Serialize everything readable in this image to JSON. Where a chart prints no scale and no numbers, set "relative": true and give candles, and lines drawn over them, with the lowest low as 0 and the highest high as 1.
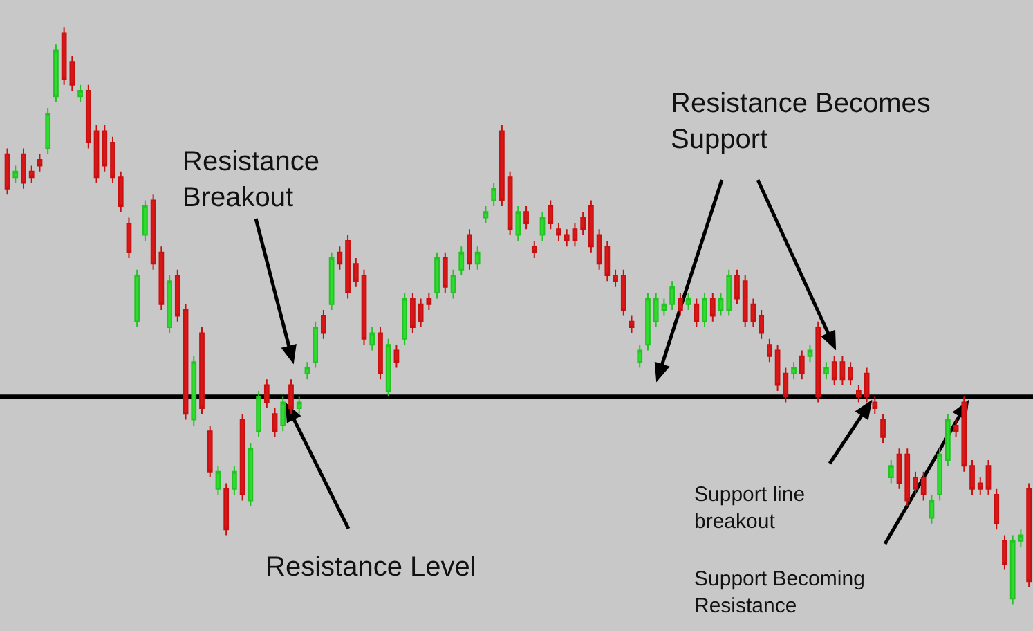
{
  "chart_data": {
    "type": "candlestick",
    "relative": true,
    "grid": false,
    "legend": false,
    "categories": [
      null,
      null,
      null,
      null,
      null,
      null,
      null,
      null,
      null,
      null,
      null,
      null,
      null,
      null,
      null,
      null,
      null,
      null,
      null,
      null,
      null,
      null,
      null,
      null,
      null,
      null,
      null,
      null,
      null,
      null,
      null,
      null,
      null,
      null,
      null,
      null,
      null,
      null,
      null,
      null,
      null,
      null,
      null,
      null,
      null,
      null,
      null,
      null,
      null,
      null,
      null,
      null,
      null,
      null,
      null,
      null,
      null,
      null,
      null,
      null,
      null,
      null,
      null,
      null,
      null,
      null,
      null,
      null,
      null,
      null,
      null,
      null,
      null,
      null,
      null,
      null,
      null,
      null,
      null,
      null,
      null,
      null,
      null,
      null,
      null,
      null,
      null,
      null,
      null,
      null,
      null,
      null,
      null,
      null,
      null,
      null,
      null,
      null,
      null,
      null,
      null,
      null,
      null,
      null,
      null,
      null,
      null,
      null,
      null,
      null,
      null,
      null,
      null,
      null,
      null,
      null,
      null,
      null,
      null,
      null,
      null,
      null,
      null,
      null,
      null,
      null,
      null
    ],
    "ohlc": [
      [
        0.78,
        0.79,
        0.71,
        0.72
      ],
      [
        0.74,
        0.76,
        0.73,
        0.75
      ],
      [
        0.78,
        0.79,
        0.72,
        0.73
      ],
      [
        0.75,
        0.76,
        0.73,
        0.74
      ],
      [
        0.77,
        0.78,
        0.75,
        0.76
      ],
      [
        0.79,
        0.86,
        0.78,
        0.85
      ],
      [
        0.88,
        0.97,
        0.87,
        0.96
      ],
      [
        0.99,
        1.0,
        0.9,
        0.91
      ],
      [
        0.94,
        0.95,
        0.89,
        0.9
      ],
      [
        0.88,
        0.9,
        0.87,
        0.89
      ],
      [
        0.89,
        0.9,
        0.79,
        0.8
      ],
      [
        0.82,
        0.83,
        0.73,
        0.74
      ],
      [
        0.82,
        0.83,
        0.75,
        0.76
      ],
      [
        0.8,
        0.81,
        0.73,
        0.74
      ],
      [
        0.74,
        0.75,
        0.68,
        0.69
      ],
      [
        0.66,
        0.67,
        0.6,
        0.61
      ],
      [
        0.49,
        0.58,
        0.48,
        0.57
      ],
      [
        0.64,
        0.7,
        0.63,
        0.69
      ],
      [
        0.7,
        0.71,
        0.58,
        0.59
      ],
      [
        0.61,
        0.62,
        0.51,
        0.52
      ],
      [
        0.48,
        0.57,
        0.47,
        0.56
      ],
      [
        0.57,
        0.58,
        0.49,
        0.5
      ],
      [
        0.51,
        0.52,
        0.32,
        0.33
      ],
      [
        0.32,
        0.43,
        0.31,
        0.42
      ],
      [
        0.47,
        0.48,
        0.33,
        0.34
      ],
      [
        0.3,
        0.31,
        0.22,
        0.23
      ],
      [
        0.2,
        0.24,
        0.19,
        0.23
      ],
      [
        0.2,
        0.21,
        0.12,
        0.13
      ],
      [
        0.2,
        0.24,
        0.19,
        0.23
      ],
      [
        0.32,
        0.33,
        0.18,
        0.19
      ],
      [
        0.18,
        0.28,
        0.17,
        0.27
      ],
      [
        0.3,
        0.37,
        0.29,
        0.36
      ],
      [
        0.38,
        0.39,
        0.34,
        0.35
      ],
      [
        0.33,
        0.34,
        0.29,
        0.3
      ],
      [
        0.31,
        0.36,
        0.3,
        0.35
      ],
      [
        0.38,
        0.39,
        0.33,
        0.34
      ],
      [
        0.34,
        0.36,
        0.33,
        0.35
      ],
      [
        0.4,
        0.42,
        0.39,
        0.41
      ],
      [
        0.42,
        0.49,
        0.41,
        0.48
      ],
      [
        0.5,
        0.51,
        0.46,
        0.47
      ],
      [
        0.52,
        0.61,
        0.51,
        0.6
      ],
      [
        0.61,
        0.62,
        0.58,
        0.59
      ],
      [
        0.63,
        0.64,
        0.53,
        0.54
      ],
      [
        0.59,
        0.6,
        0.55,
        0.56
      ],
      [
        0.57,
        0.58,
        0.45,
        0.46
      ],
      [
        0.45,
        0.48,
        0.44,
        0.47
      ],
      [
        0.47,
        0.48,
        0.39,
        0.4
      ],
      [
        0.37,
        0.46,
        0.36,
        0.45
      ],
      [
        0.44,
        0.45,
        0.41,
        0.42
      ],
      [
        0.46,
        0.54,
        0.45,
        0.53
      ],
      [
        0.53,
        0.54,
        0.47,
        0.48
      ],
      [
        0.52,
        0.53,
        0.48,
        0.49
      ],
      [
        0.53,
        0.54,
        0.51,
        0.52
      ],
      [
        0.54,
        0.61,
        0.53,
        0.6
      ],
      [
        0.6,
        0.61,
        0.54,
        0.55
      ],
      [
        0.54,
        0.58,
        0.53,
        0.57
      ],
      [
        0.58,
        0.62,
        0.57,
        0.61
      ],
      [
        0.64,
        0.65,
        0.58,
        0.59
      ],
      [
        0.59,
        0.62,
        0.58,
        0.61
      ],
      [
        0.67,
        0.69,
        0.66,
        0.68
      ],
      [
        0.7,
        0.73,
        0.69,
        0.72
      ],
      [
        0.82,
        0.83,
        0.69,
        0.7
      ],
      [
        0.74,
        0.75,
        0.64,
        0.65
      ],
      [
        0.64,
        0.69,
        0.63,
        0.68
      ],
      [
        0.68,
        0.69,
        0.65,
        0.66
      ],
      [
        0.62,
        0.63,
        0.6,
        0.61
      ],
      [
        0.64,
        0.68,
        0.63,
        0.67
      ],
      [
        0.69,
        0.7,
        0.65,
        0.66
      ],
      [
        0.65,
        0.66,
        0.63,
        0.64
      ],
      [
        0.64,
        0.65,
        0.62,
        0.63
      ],
      [
        0.65,
        0.66,
        0.62,
        0.63
      ],
      [
        0.67,
        0.68,
        0.64,
        0.65
      ],
      [
        0.69,
        0.7,
        0.61,
        0.62
      ],
      [
        0.64,
        0.65,
        0.58,
        0.59
      ],
      [
        0.62,
        0.63,
        0.56,
        0.57
      ],
      [
        0.57,
        0.58,
        0.55,
        0.56
      ],
      [
        0.57,
        0.58,
        0.5,
        0.51
      ],
      [
        0.49,
        0.5,
        0.47,
        0.48
      ],
      [
        0.42,
        0.45,
        0.41,
        0.44
      ],
      [
        0.45,
        0.54,
        0.44,
        0.53
      ],
      [
        0.49,
        0.54,
        0.48,
        0.53
      ],
      [
        0.51,
        0.53,
        0.5,
        0.52
      ],
      [
        0.52,
        0.56,
        0.51,
        0.55
      ],
      [
        0.53,
        0.54,
        0.5,
        0.51
      ],
      [
        0.52,
        0.54,
        0.51,
        0.53
      ],
      [
        0.52,
        0.53,
        0.48,
        0.49
      ],
      [
        0.49,
        0.54,
        0.48,
        0.53
      ],
      [
        0.53,
        0.54,
        0.49,
        0.5
      ],
      [
        0.51,
        0.54,
        0.5,
        0.53
      ],
      [
        0.51,
        0.58,
        0.5,
        0.57
      ],
      [
        0.57,
        0.58,
        0.52,
        0.53
      ],
      [
        0.56,
        0.57,
        0.48,
        0.49
      ],
      [
        0.52,
        0.53,
        0.48,
        0.49
      ],
      [
        0.5,
        0.51,
        0.46,
        0.47
      ],
      [
        0.45,
        0.46,
        0.42,
        0.43
      ],
      [
        0.44,
        0.45,
        0.37,
        0.38
      ],
      [
        0.4,
        0.41,
        0.35,
        0.36
      ],
      [
        0.4,
        0.42,
        0.39,
        0.41
      ],
      [
        0.43,
        0.44,
        0.39,
        0.4
      ],
      [
        0.43,
        0.45,
        0.42,
        0.44
      ],
      [
        0.48,
        0.49,
        0.35,
        0.36
      ],
      [
        0.4,
        0.42,
        0.39,
        0.41
      ],
      [
        0.42,
        0.43,
        0.38,
        0.39
      ],
      [
        0.42,
        0.43,
        0.38,
        0.39
      ],
      [
        0.41,
        0.42,
        0.38,
        0.39
      ],
      [
        0.37,
        0.38,
        0.35,
        0.36
      ],
      [
        0.4,
        0.41,
        0.35,
        0.36
      ],
      [
        0.35,
        0.36,
        0.33,
        0.34
      ],
      [
        0.32,
        0.33,
        0.28,
        0.29
      ],
      [
        0.22,
        0.25,
        0.21,
        0.24
      ],
      [
        0.26,
        0.27,
        0.2,
        0.21
      ],
      [
        0.26,
        0.27,
        0.17,
        0.18
      ],
      [
        0.22,
        0.23,
        0.19,
        0.2
      ],
      [
        0.22,
        0.23,
        0.18,
        0.19
      ],
      [
        0.15,
        0.19,
        0.14,
        0.18
      ],
      [
        0.19,
        0.27,
        0.18,
        0.26
      ],
      [
        0.25,
        0.33,
        0.24,
        0.32
      ],
      [
        0.31,
        0.32,
        0.29,
        0.3
      ],
      [
        0.35,
        0.36,
        0.23,
        0.24
      ],
      [
        0.24,
        0.25,
        0.19,
        0.2
      ],
      [
        0.21,
        0.22,
        0.19,
        0.2
      ],
      [
        0.24,
        0.25,
        0.19,
        0.2
      ],
      [
        0.19,
        0.2,
        0.13,
        0.14
      ],
      [
        0.11,
        0.12,
        0.06,
        0.07
      ],
      [
        0.01,
        0.12,
        0.0,
        0.11
      ],
      [
        0.11,
        0.13,
        0.1,
        0.12
      ],
      [
        0.2,
        0.21,
        0.03,
        0.04
      ]
    ],
    "ref_lines": [
      {
        "axis": "y",
        "value": 0.36,
        "color": "#000000"
      }
    ],
    "annotations": [
      "Resistance\nBreakout",
      "Resistance Level",
      "Resistance Becomes\nSupport",
      "Support line\nbreakout",
      "Support Becoming\nResistance"
    ]
  }
}
